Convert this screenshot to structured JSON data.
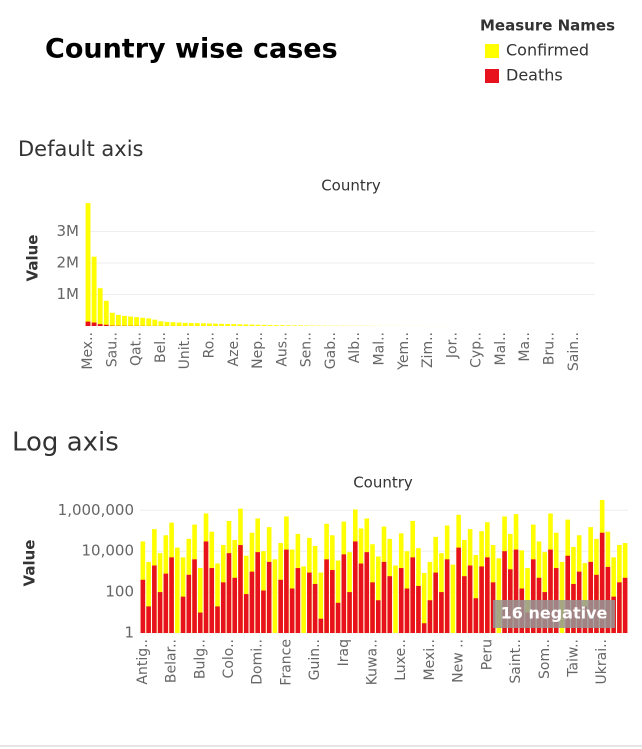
{
  "title": "Country wise cases",
  "legend_title": "Measure Names",
  "chart_data": [
    {
      "type": "bar",
      "title": "Default axis",
      "x_label": "Country",
      "y_label": "Value",
      "log": false,
      "grid": true,
      "ylim": [
        0,
        4000000
      ],
      "yticks": [
        {
          "value": 1000000,
          "label": "1M"
        },
        {
          "value": 2000000,
          "label": "2M"
        },
        {
          "value": 3000000,
          "label": "3M"
        }
      ],
      "categories": [
        "Mex..",
        null,
        null,
        null,
        "Sau..",
        null,
        null,
        null,
        "Qat..",
        null,
        null,
        null,
        "Bel..",
        null,
        null,
        null,
        "Unit..",
        null,
        null,
        null,
        "Ro..",
        null,
        null,
        null,
        "Aze..",
        null,
        null,
        null,
        "Nep..",
        null,
        null,
        null,
        "Aus..",
        null,
        null,
        null,
        "Sen..",
        null,
        null,
        null,
        "Gab..",
        null,
        null,
        null,
        "Alb..",
        null,
        null,
        null,
        "Mal..",
        null,
        null,
        null,
        "Yem..",
        null,
        null,
        null,
        "Zim..",
        null,
        null,
        null,
        "Jor..",
        null,
        null,
        null,
        "Cyp..",
        null,
        null,
        null,
        "Mal..",
        null,
        null,
        null,
        "Ma..",
        null,
        null,
        null,
        "Bru..",
        null,
        null,
        null,
        "Sain..",
        null,
        null,
        null
      ],
      "series": [
        {
          "name": "Confirmed",
          "color": "#ffff00",
          "values": [
            3900000,
            2200000,
            1200000,
            800000,
            420000,
            350000,
            320000,
            300000,
            280000,
            260000,
            240000,
            200000,
            150000,
            130000,
            120000,
            110000,
            100000,
            95000,
            90000,
            85000,
            80000,
            75000,
            70000,
            65000,
            60000,
            55000,
            50000,
            45000,
            40000,
            36000,
            32000,
            28000,
            25000,
            22000,
            20000,
            18000,
            16000,
            14000,
            12000,
            11000,
            10000,
            9000,
            8000,
            7000,
            6000,
            5500,
            5000,
            4500,
            4000,
            3500,
            3000,
            2800,
            2500,
            2200,
            2000,
            1800,
            1600,
            1400,
            1200,
            1000,
            900,
            800,
            700,
            600,
            500,
            450,
            400,
            350,
            300,
            250,
            200,
            180,
            150,
            120,
            100,
            80,
            60,
            50,
            40,
            30,
            20,
            15,
            10,
            5
          ]
        },
        {
          "name": "Deaths",
          "color": "#e8121c",
          "values": [
            140000,
            110000,
            60000,
            40000,
            12000,
            9000,
            8000,
            7000,
            6000,
            5000,
            4000,
            3500,
            3000,
            2500,
            2200,
            2000,
            1800,
            1600,
            1400,
            1200,
            1000,
            900,
            800,
            700,
            600,
            500,
            450,
            400,
            350,
            300,
            260,
            220,
            200,
            180,
            160,
            140,
            120,
            100,
            90,
            80,
            70,
            60,
            55,
            50,
            45,
            40,
            35,
            30,
            28,
            25,
            22,
            20,
            18,
            16,
            14,
            12,
            10,
            9,
            8,
            7,
            6,
            5,
            5,
            4,
            4,
            3,
            3,
            2,
            2,
            2,
            1,
            1,
            1,
            1,
            1,
            0,
            0,
            0,
            0,
            0,
            0,
            0,
            0,
            0
          ]
        }
      ]
    },
    {
      "type": "bar",
      "title": "Log axis",
      "x_label": "Country",
      "y_label": "Value",
      "log": true,
      "grid": true,
      "annotation": "16 negative",
      "ylim": [
        1,
        5000000
      ],
      "yticks": [
        1,
        100,
        {
          "value": 10000,
          "label": "10,000"
        },
        {
          "value": 1000000,
          "label": "1,000,000"
        }
      ],
      "categories": [
        "Antig..",
        null,
        null,
        null,
        null,
        "Belar..",
        null,
        null,
        null,
        null,
        "Bulg..",
        null,
        null,
        null,
        null,
        "Colo..",
        null,
        null,
        null,
        null,
        "Domi..",
        null,
        null,
        null,
        null,
        "France",
        null,
        null,
        null,
        null,
        "Guin..",
        null,
        null,
        null,
        null,
        "Iraq",
        null,
        null,
        null,
        null,
        "Kuwa..",
        null,
        null,
        null,
        null,
        "Luxe..",
        null,
        null,
        null,
        null,
        "Mexi..",
        null,
        null,
        null,
        null,
        "New ..",
        null,
        null,
        null,
        null,
        "Peru",
        null,
        null,
        null,
        null,
        "Saint..",
        null,
        null,
        null,
        null,
        "Som..",
        null,
        null,
        null,
        null,
        "Taiw..",
        null,
        null,
        null,
        null,
        "Ukrai..",
        null,
        null,
        null,
        null
      ],
      "series": [
        {
          "name": "Confirmed",
          "color": "#ffff00",
          "values": [
            30000,
            3000,
            120000,
            8000,
            60000,
            250000,
            15000,
            5000,
            40000,
            200000,
            1500,
            700000,
            90000,
            2500,
            20000,
            300000,
            35000,
            1200000,
            6000,
            80000,
            400000,
            10000,
            150000,
            4000,
            25000,
            500000,
            12000,
            70000,
            1800,
            45000,
            18000,
            900,
            220000,
            60000,
            3500,
            280000,
            9000,
            1100000,
            130000,
            400000,
            22000,
            5500,
            160000,
            40000,
            2000,
            75000,
            10000,
            300000,
            14000,
            850,
            3000,
            50000,
            8000,
            180000,
            2200,
            600000,
            35000,
            120000,
            6500,
            95000,
            260000,
            20000,
            4500,
            500000,
            70000,
            650000,
            11000,
            1500,
            200000,
            30000,
            9000,
            700000,
            80000,
            3000,
            350000,
            16000,
            60000,
            2600,
            150000,
            40000,
            3200000,
            90000,
            5000,
            20000,
            25000
          ]
        },
        {
          "name": "Deaths",
          "color": "#e8121c",
          "values": [
            400,
            20,
            2000,
            100,
            800,
            5000,
            0,
            60,
            700,
            4000,
            10,
            30000,
            1500,
            20,
            300,
            8000,
            500,
            20000,
            80,
            1000,
            9000,
            120,
            3000,
            0,
            400,
            12000,
            150,
            1500,
            0,
            900,
            250,
            5,
            4000,
            1200,
            30,
            7000,
            100,
            30000,
            2500,
            9000,
            300,
            40,
            3000,
            600,
            0,
            1500,
            150,
            5000,
            200,
            3,
            40,
            900,
            100,
            4000,
            0,
            15000,
            600,
            2000,
            50,
            1800,
            5000,
            300,
            0,
            10000,
            1300,
            12000,
            150,
            10,
            4000,
            500,
            100,
            12000,
            1500,
            0,
            6000,
            250,
            1000,
            20,
            3000,
            700,
            80000,
            1700,
            60,
            300,
            500
          ]
        }
      ]
    }
  ]
}
